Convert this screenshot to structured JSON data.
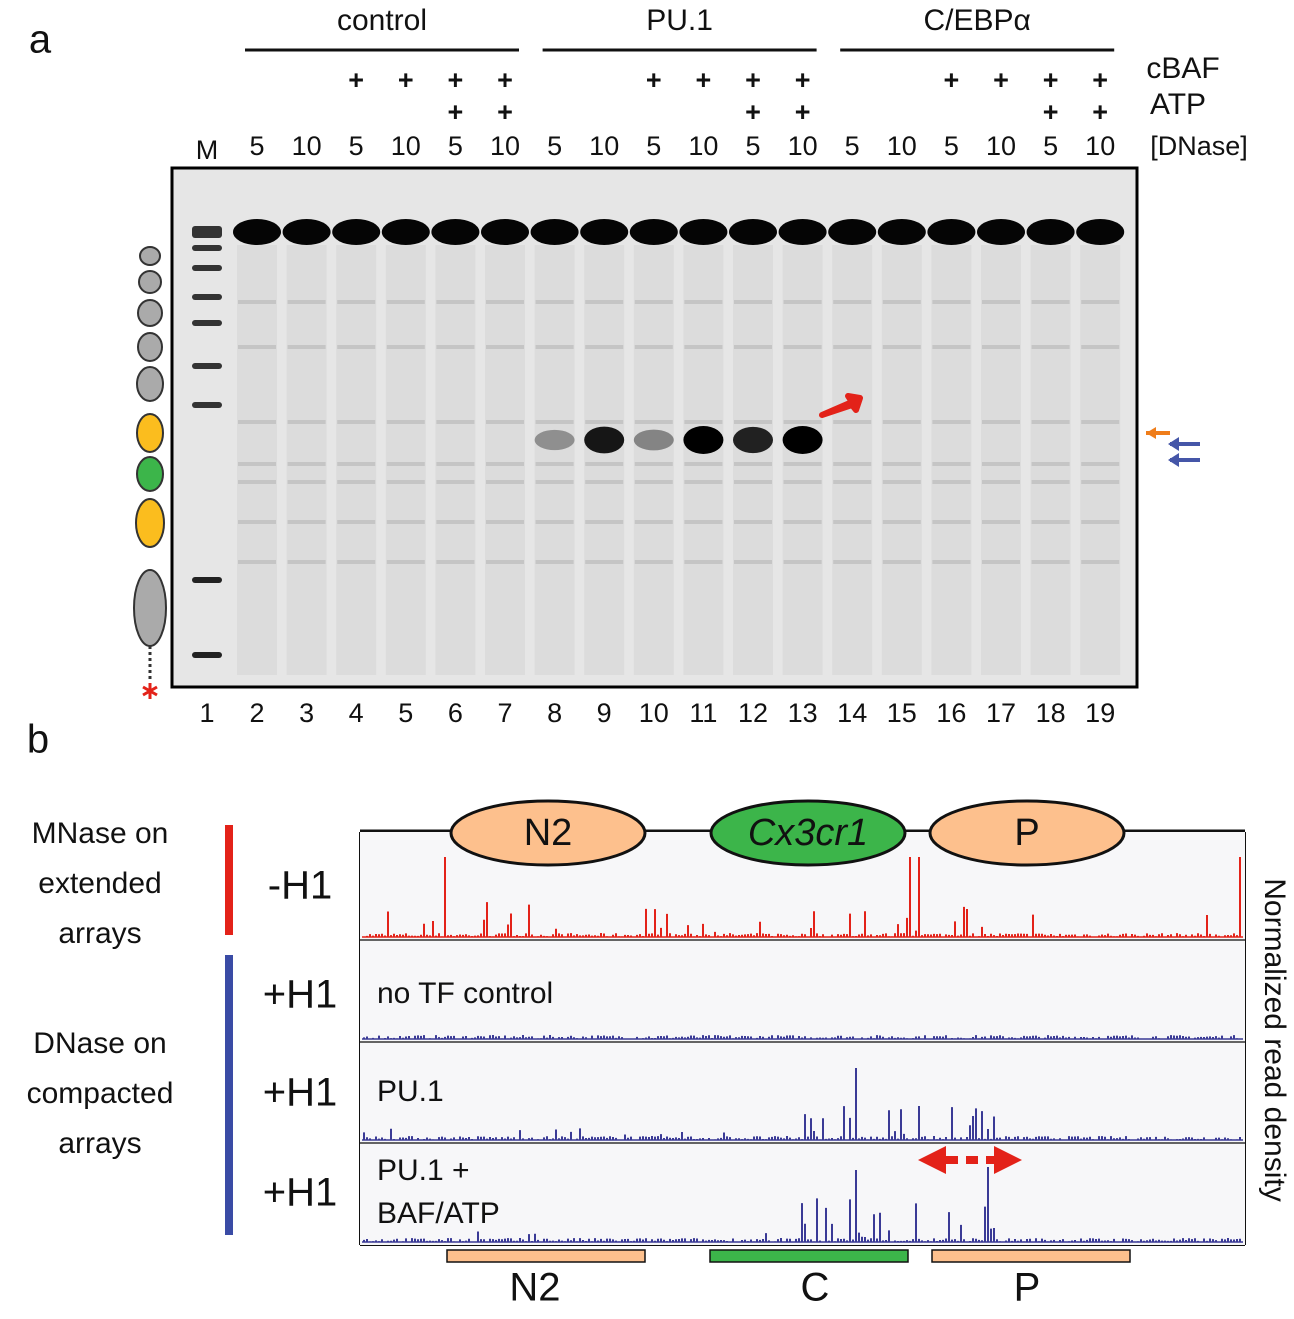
{
  "panel_a": {
    "label": "a",
    "groups": [
      "control",
      "PU.1",
      "C/EBPα"
    ],
    "row_labels": [
      "cBAF",
      "ATP",
      "[DNase]"
    ],
    "marker_label": "M",
    "lanes": [
      {
        "number": 1
      },
      {
        "number": 2,
        "dnase": 5
      },
      {
        "number": 3,
        "dnase": 10
      },
      {
        "number": 4,
        "dnase": 5,
        "cbaf": "+"
      },
      {
        "number": 5,
        "dnase": 10,
        "cbaf": "+"
      },
      {
        "number": 6,
        "dnase": 5,
        "cbaf": "+",
        "atp": "+"
      },
      {
        "number": 7,
        "dnase": 10,
        "cbaf": "+",
        "atp": "+"
      },
      {
        "number": 8,
        "dnase": 5
      },
      {
        "number": 9,
        "dnase": 10
      },
      {
        "number": 10,
        "dnase": 5,
        "cbaf": "+"
      },
      {
        "number": 11,
        "dnase": 10,
        "cbaf": "+"
      },
      {
        "number": 12,
        "dnase": 5,
        "cbaf": "+",
        "atp": "+"
      },
      {
        "number": 13,
        "dnase": 10,
        "cbaf": "+",
        "atp": "+"
      },
      {
        "number": 14,
        "dnase": 5
      },
      {
        "number": 15,
        "dnase": 10
      },
      {
        "number": 16,
        "dnase": 5,
        "cbaf": "+"
      },
      {
        "number": 17,
        "dnase": 10,
        "cbaf": "+"
      },
      {
        "number": 18,
        "dnase": 5,
        "cbaf": "+",
        "atp": "+"
      },
      {
        "number": 19,
        "dnase": 10,
        "cbaf": "+",
        "atp": "+"
      }
    ]
  },
  "panel_b": {
    "label": "b",
    "left_labels": [
      {
        "lines": [
          "MNase on",
          "extended",
          "arrays"
        ]
      },
      {
        "lines": [
          "DNase on",
          "compacted",
          "arrays"
        ]
      }
    ],
    "tracks": [
      {
        "condition": "-H1"
      },
      {
        "condition": "+H1",
        "lines": [
          "no TF control"
        ]
      },
      {
        "condition": "+H1",
        "lines": [
          "PU.1"
        ]
      },
      {
        "condition": "+H1",
        "lines": [
          "PU.1 +",
          "BAF/ATP"
        ]
      }
    ],
    "elements_top": [
      "N2",
      "Cx3cr1",
      "P"
    ],
    "elements_bottom": [
      "N2",
      "C",
      "P"
    ],
    "y_axis_label": "Normalized read density"
  }
}
